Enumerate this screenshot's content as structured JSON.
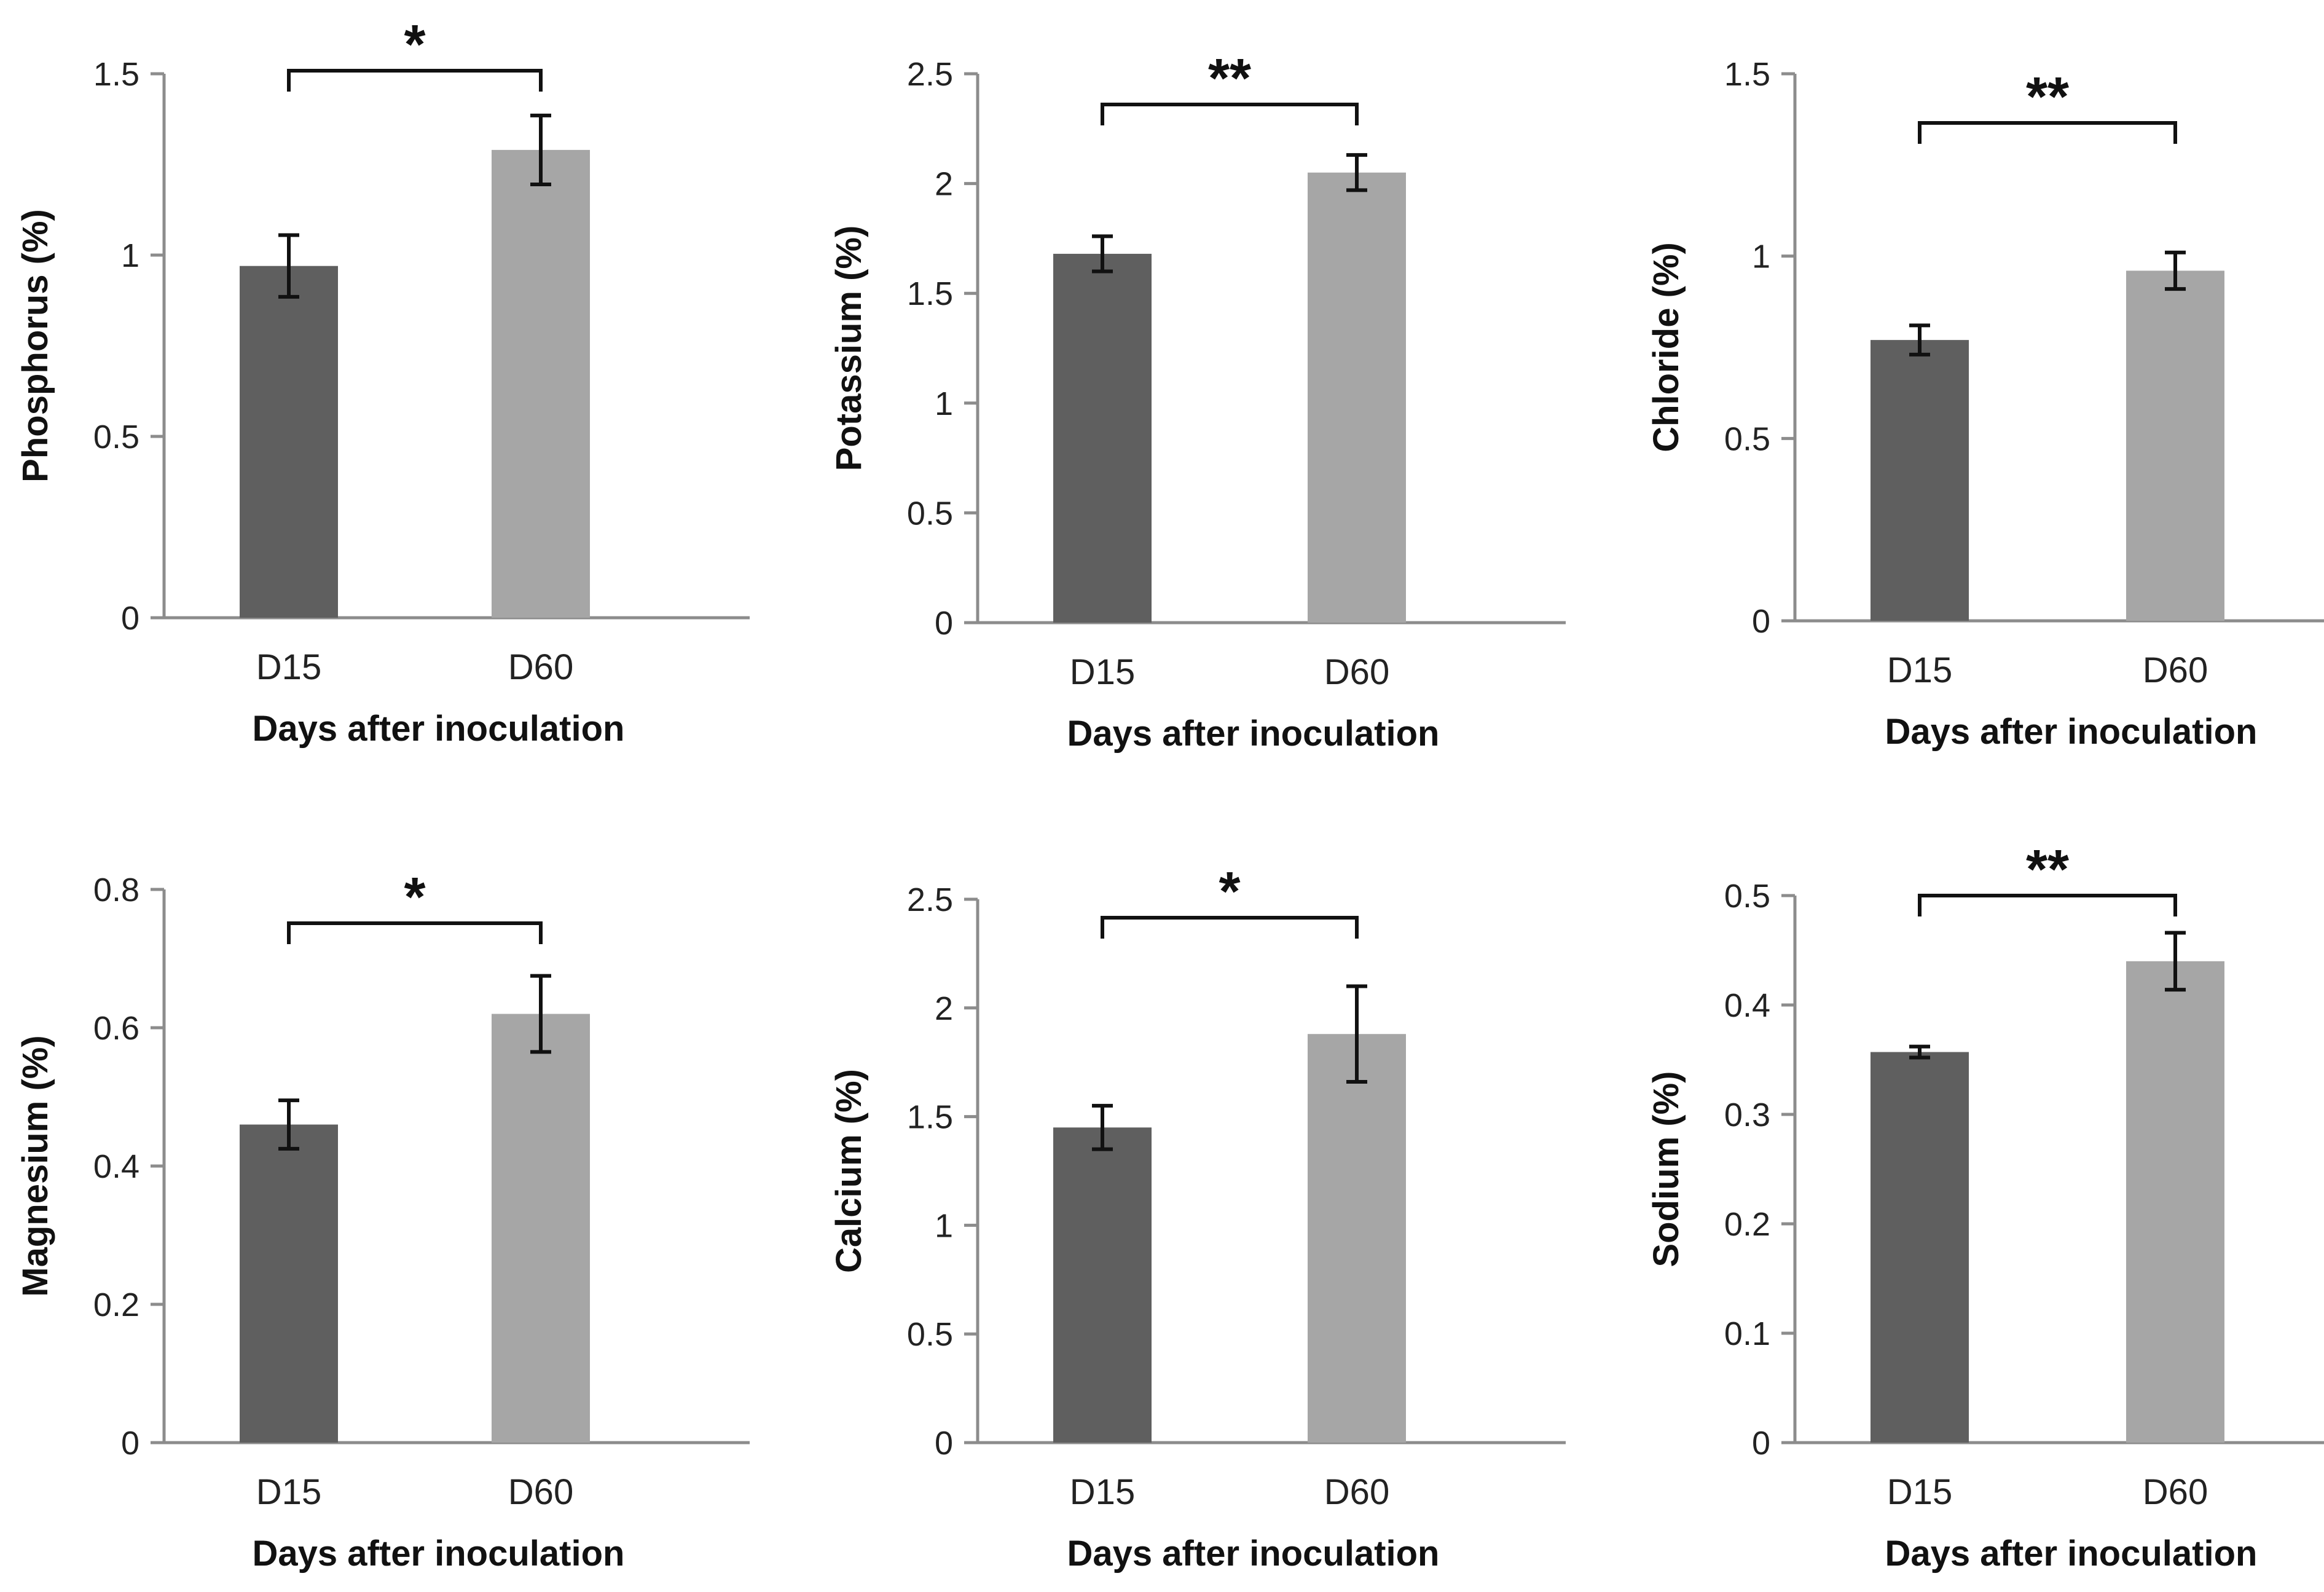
{
  "chart_data": [
    {
      "type": "bar",
      "categories": [
        "D15",
        "D60"
      ],
      "values": [
        0.97,
        1.29
      ],
      "errors": [
        0.085,
        0.095
      ],
      "ylabel": "Phosphorus (%)",
      "xlabel": "Days after inoculation",
      "ylim": [
        0,
        1.5
      ],
      "yticks": [
        0,
        0.5,
        1,
        1.5
      ],
      "ytick_labels": [
        "0",
        "0.5",
        "1",
        "1.5"
      ],
      "significance": "*",
      "bar_colors": [
        "#5f5f5f",
        "#a6a6a6"
      ]
    },
    {
      "type": "bar",
      "categories": [
        "D15",
        "D60"
      ],
      "values": [
        1.68,
        2.05
      ],
      "errors": [
        0.08,
        0.08
      ],
      "ylabel": "Potassium (%)",
      "xlabel": "Days after inoculation",
      "ylim": [
        0,
        2.5
      ],
      "yticks": [
        0,
        0.5,
        1,
        1.5,
        2,
        2.5
      ],
      "ytick_labels": [
        "0",
        "0.5",
        "1",
        "1.5",
        "2",
        "2.5"
      ],
      "significance": "**",
      "bar_colors": [
        "#5f5f5f",
        "#a6a6a6"
      ]
    },
    {
      "type": "bar",
      "categories": [
        "D15",
        "D60"
      ],
      "values": [
        0.77,
        0.96
      ],
      "errors": [
        0.04,
        0.05
      ],
      "ylabel": "Chloride (%)",
      "xlabel": "Days after inoculation",
      "ylim": [
        0,
        1.5
      ],
      "yticks": [
        0,
        0.5,
        1,
        1.5
      ],
      "ytick_labels": [
        "0",
        "0.5",
        "1",
        "1.5"
      ],
      "significance": "**",
      "bar_colors": [
        "#5f5f5f",
        "#a6a6a6"
      ]
    },
    {
      "type": "bar",
      "categories": [
        "D15",
        "D60"
      ],
      "values": [
        0.46,
        0.62
      ],
      "errors": [
        0.035,
        0.055
      ],
      "ylabel": "Magnesium (%)",
      "xlabel": "Days after inoculation",
      "ylim": [
        0,
        0.8
      ],
      "yticks": [
        0,
        0.2,
        0.4,
        0.6,
        0.8
      ],
      "ytick_labels": [
        "0",
        "0.2",
        "0.4",
        "0.6",
        "0.8"
      ],
      "significance": "*",
      "bar_colors": [
        "#5f5f5f",
        "#a6a6a6"
      ]
    },
    {
      "type": "bar",
      "categories": [
        "D15",
        "D60"
      ],
      "values": [
        1.45,
        1.88
      ],
      "errors": [
        0.1,
        0.22
      ],
      "ylabel": "Calcium (%)",
      "xlabel": "Days after inoculation",
      "ylim": [
        0,
        2.5
      ],
      "yticks": [
        0,
        0.5,
        1,
        1.5,
        2,
        2.5
      ],
      "ytick_labels": [
        "0",
        "0.5",
        "1",
        "1.5",
        "2",
        "2.5"
      ],
      "significance": "*",
      "bar_colors": [
        "#5f5f5f",
        "#a6a6a6"
      ]
    },
    {
      "type": "bar",
      "categories": [
        "D15",
        "D60"
      ],
      "values": [
        0.357,
        0.44
      ],
      "errors": [
        0.005,
        0.026
      ],
      "ylabel": "Sodium (%)",
      "xlabel": "Days after inoculation",
      "ylim": [
        0,
        0.5
      ],
      "yticks": [
        0,
        0.1,
        0.2,
        0.3,
        0.4,
        0.5
      ],
      "ytick_labels": [
        "0",
        "0.1",
        "0.2",
        "0.3",
        "0.4",
        "0.5"
      ],
      "significance": "**",
      "bar_colors": [
        "#5f5f5f",
        "#a6a6a6"
      ]
    }
  ]
}
